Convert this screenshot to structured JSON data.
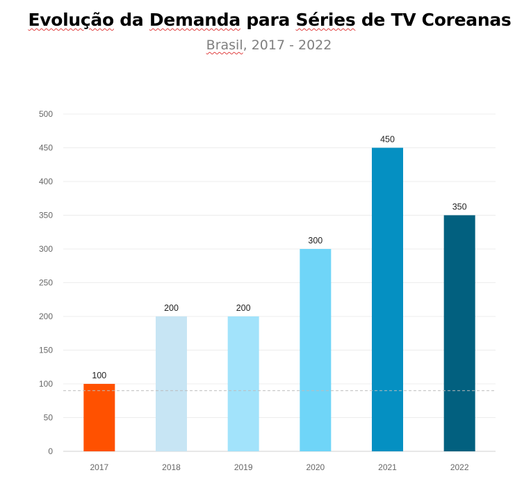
{
  "chart_data": {
    "type": "bar",
    "title": {
      "part1": "Evolução",
      "part2": " da ",
      "part3": "Demanda",
      "part4": " para ",
      "part5": "Séries",
      "part6": " de TV Coreanas"
    },
    "subtitle": {
      "part1": "Brasil",
      "part2": ", 2017 - 2022"
    },
    "categories": [
      "2017",
      "2018",
      "2019",
      "2020",
      "2021",
      "2022"
    ],
    "values": [
      100,
      200,
      200,
      300,
      450,
      350
    ],
    "colors": [
      "#ff5100",
      "#c7e5f4",
      "#a2e3fb",
      "#6fd5f8",
      "#0590c2",
      "#02607f"
    ],
    "ylim": [
      0,
      500
    ],
    "yticks": [
      0,
      50,
      100,
      150,
      200,
      250,
      300,
      350,
      400,
      450,
      500
    ],
    "reference_line": 90,
    "grid": true,
    "xlabel": "",
    "ylabel": ""
  }
}
